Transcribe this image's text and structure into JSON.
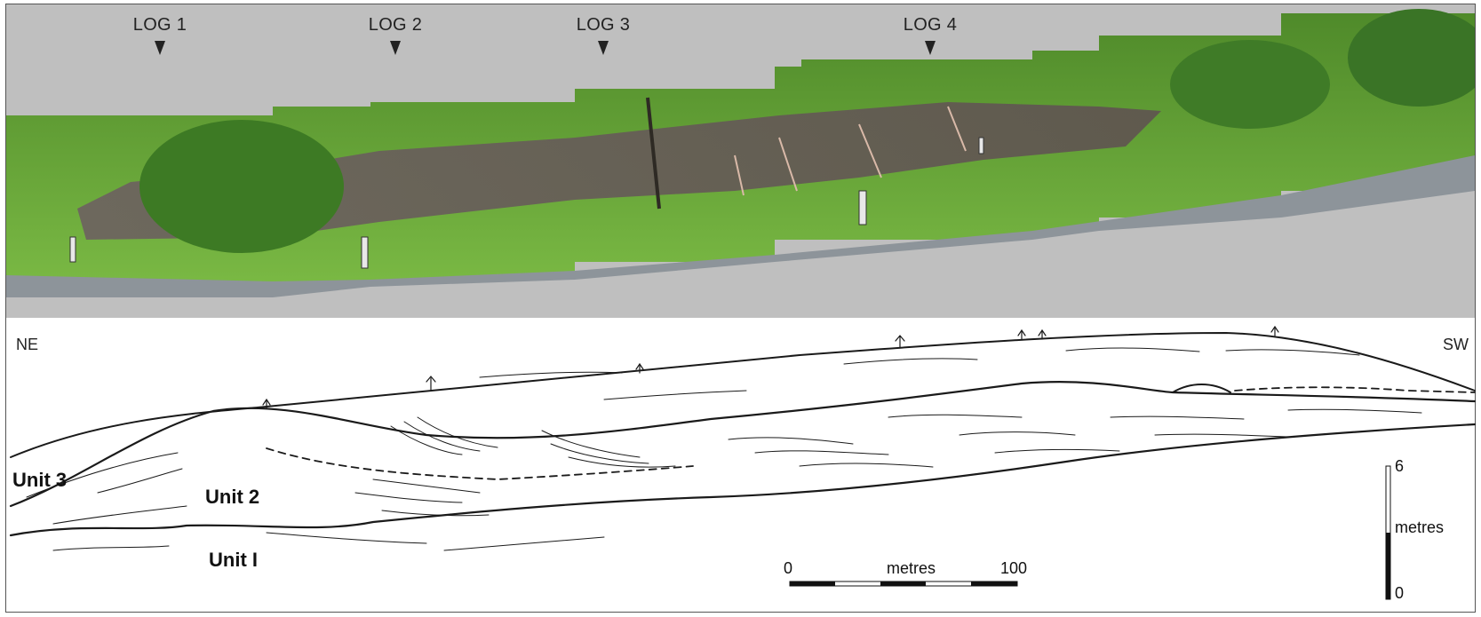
{
  "logs": [
    "LOG 1",
    "LOG 2",
    "LOG 3",
    "LOG 4"
  ],
  "directions": {
    "left": "NE",
    "right": "SW"
  },
  "units": {
    "unit3": "Unit 3",
    "unit2": "Unit 2",
    "unit1": "Unit I"
  },
  "horizontal_scale": {
    "min": "0",
    "label": "metres",
    "max": "100"
  },
  "vertical_scale": {
    "max": "6",
    "label": "metres",
    "min": "0"
  },
  "colors": {
    "sky_mask": "#bfbfbf",
    "vegetation": "#6fae3c",
    "rock": "#6b5e57",
    "road": "#8d949a",
    "line": "#1a1a1a"
  }
}
